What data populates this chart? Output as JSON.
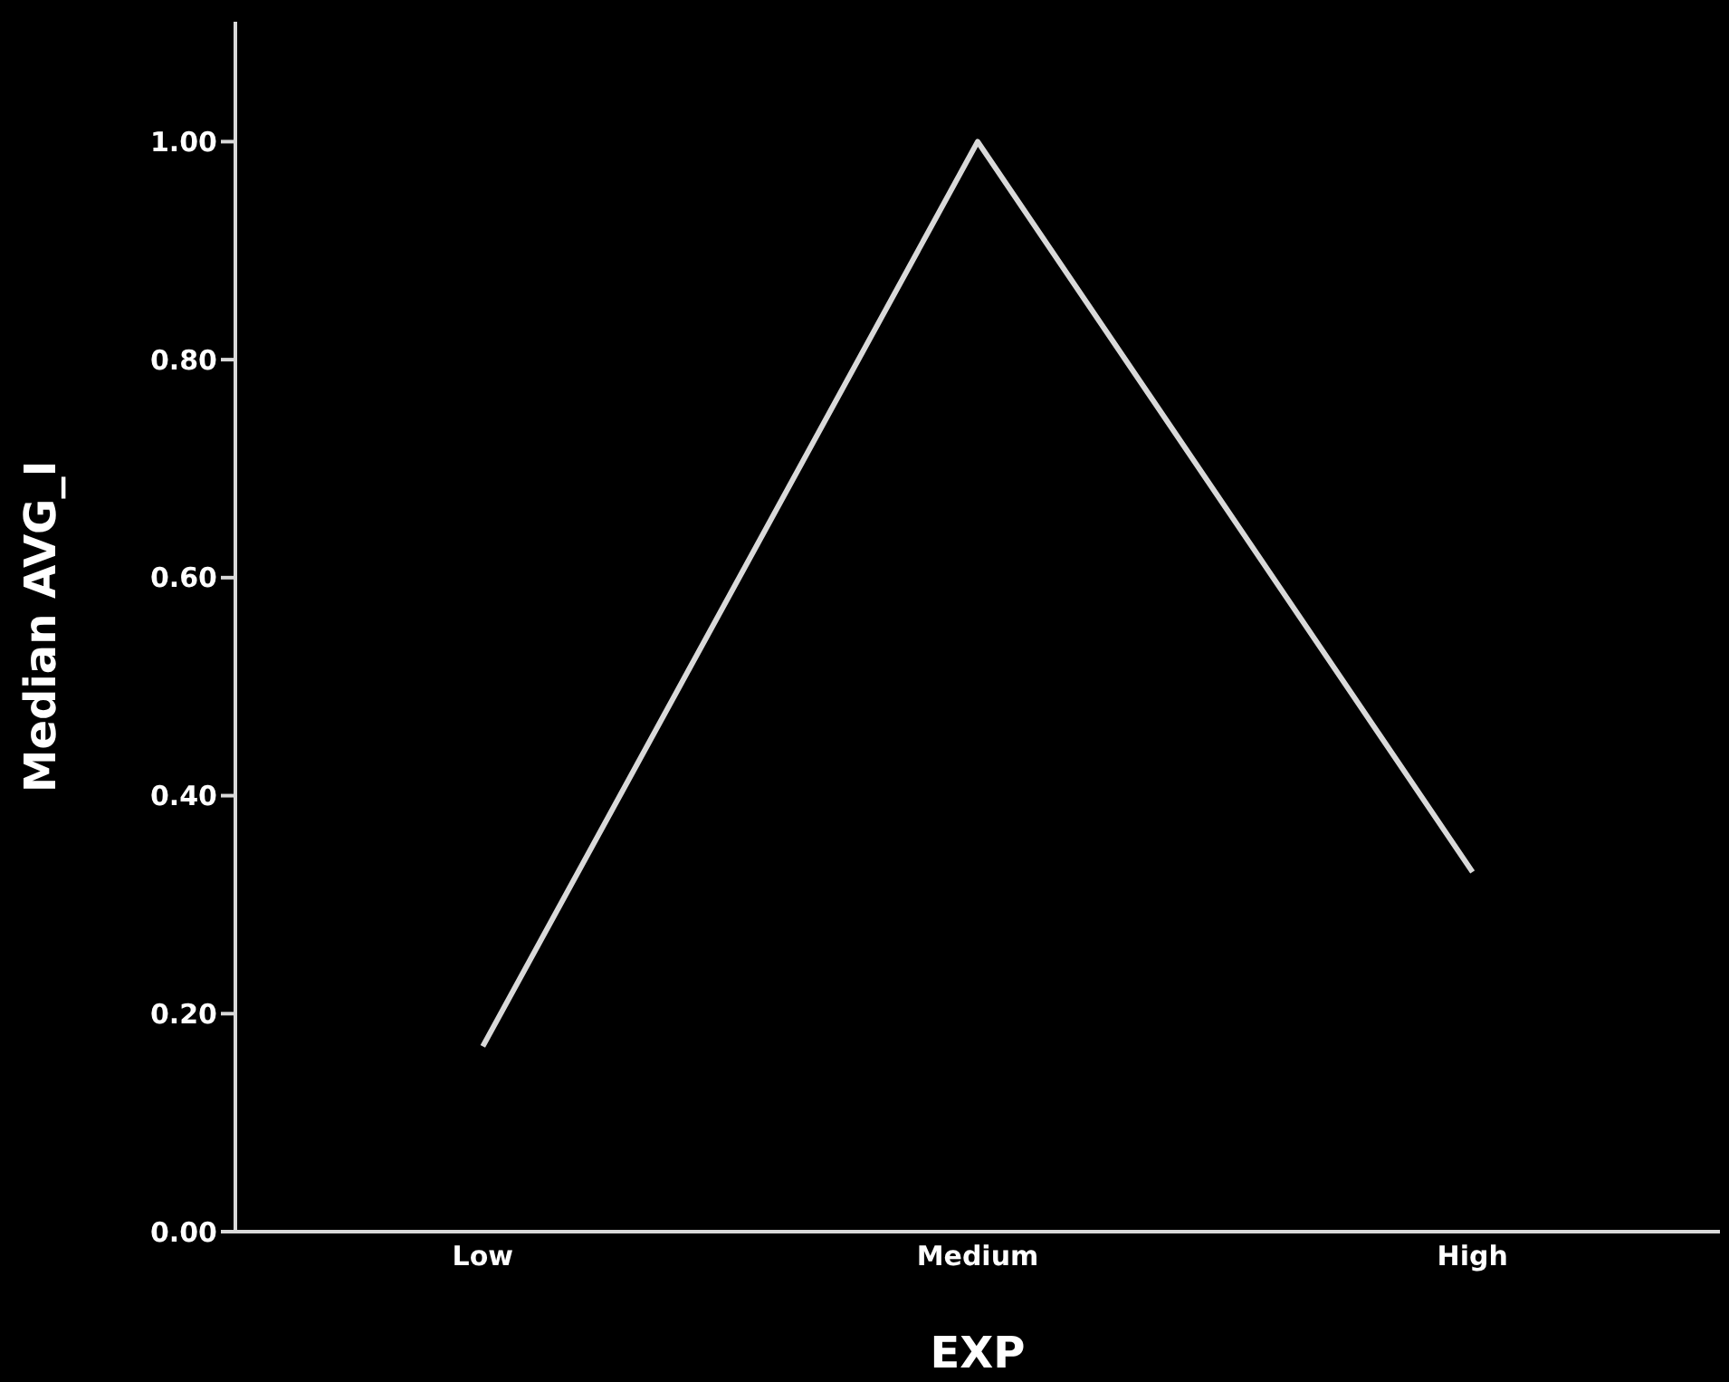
{
  "chart_data": {
    "type": "line",
    "xlabel": "EXP",
    "ylabel": "Median AVG_I",
    "categories": [
      "Low",
      "Medium",
      "High"
    ],
    "series": [
      {
        "color": "#d9d9d9",
        "values": [
          0.17,
          1.0,
          0.33
        ]
      }
    ],
    "ylim": [
      0,
      1.11
    ],
    "yticks": [
      {
        "value": 0,
        "label": "0.00"
      },
      {
        "value": 0.2,
        "label": "0.20"
      },
      {
        "value": 0.4,
        "label": "0.40"
      },
      {
        "value": 0.6,
        "label": "0.60"
      },
      {
        "value": 0.8,
        "label": "0.80"
      },
      {
        "value": 1,
        "label": "1.00"
      }
    ],
    "grid": false,
    "legend": false,
    "marker": "none",
    "line_style": "solid"
  }
}
